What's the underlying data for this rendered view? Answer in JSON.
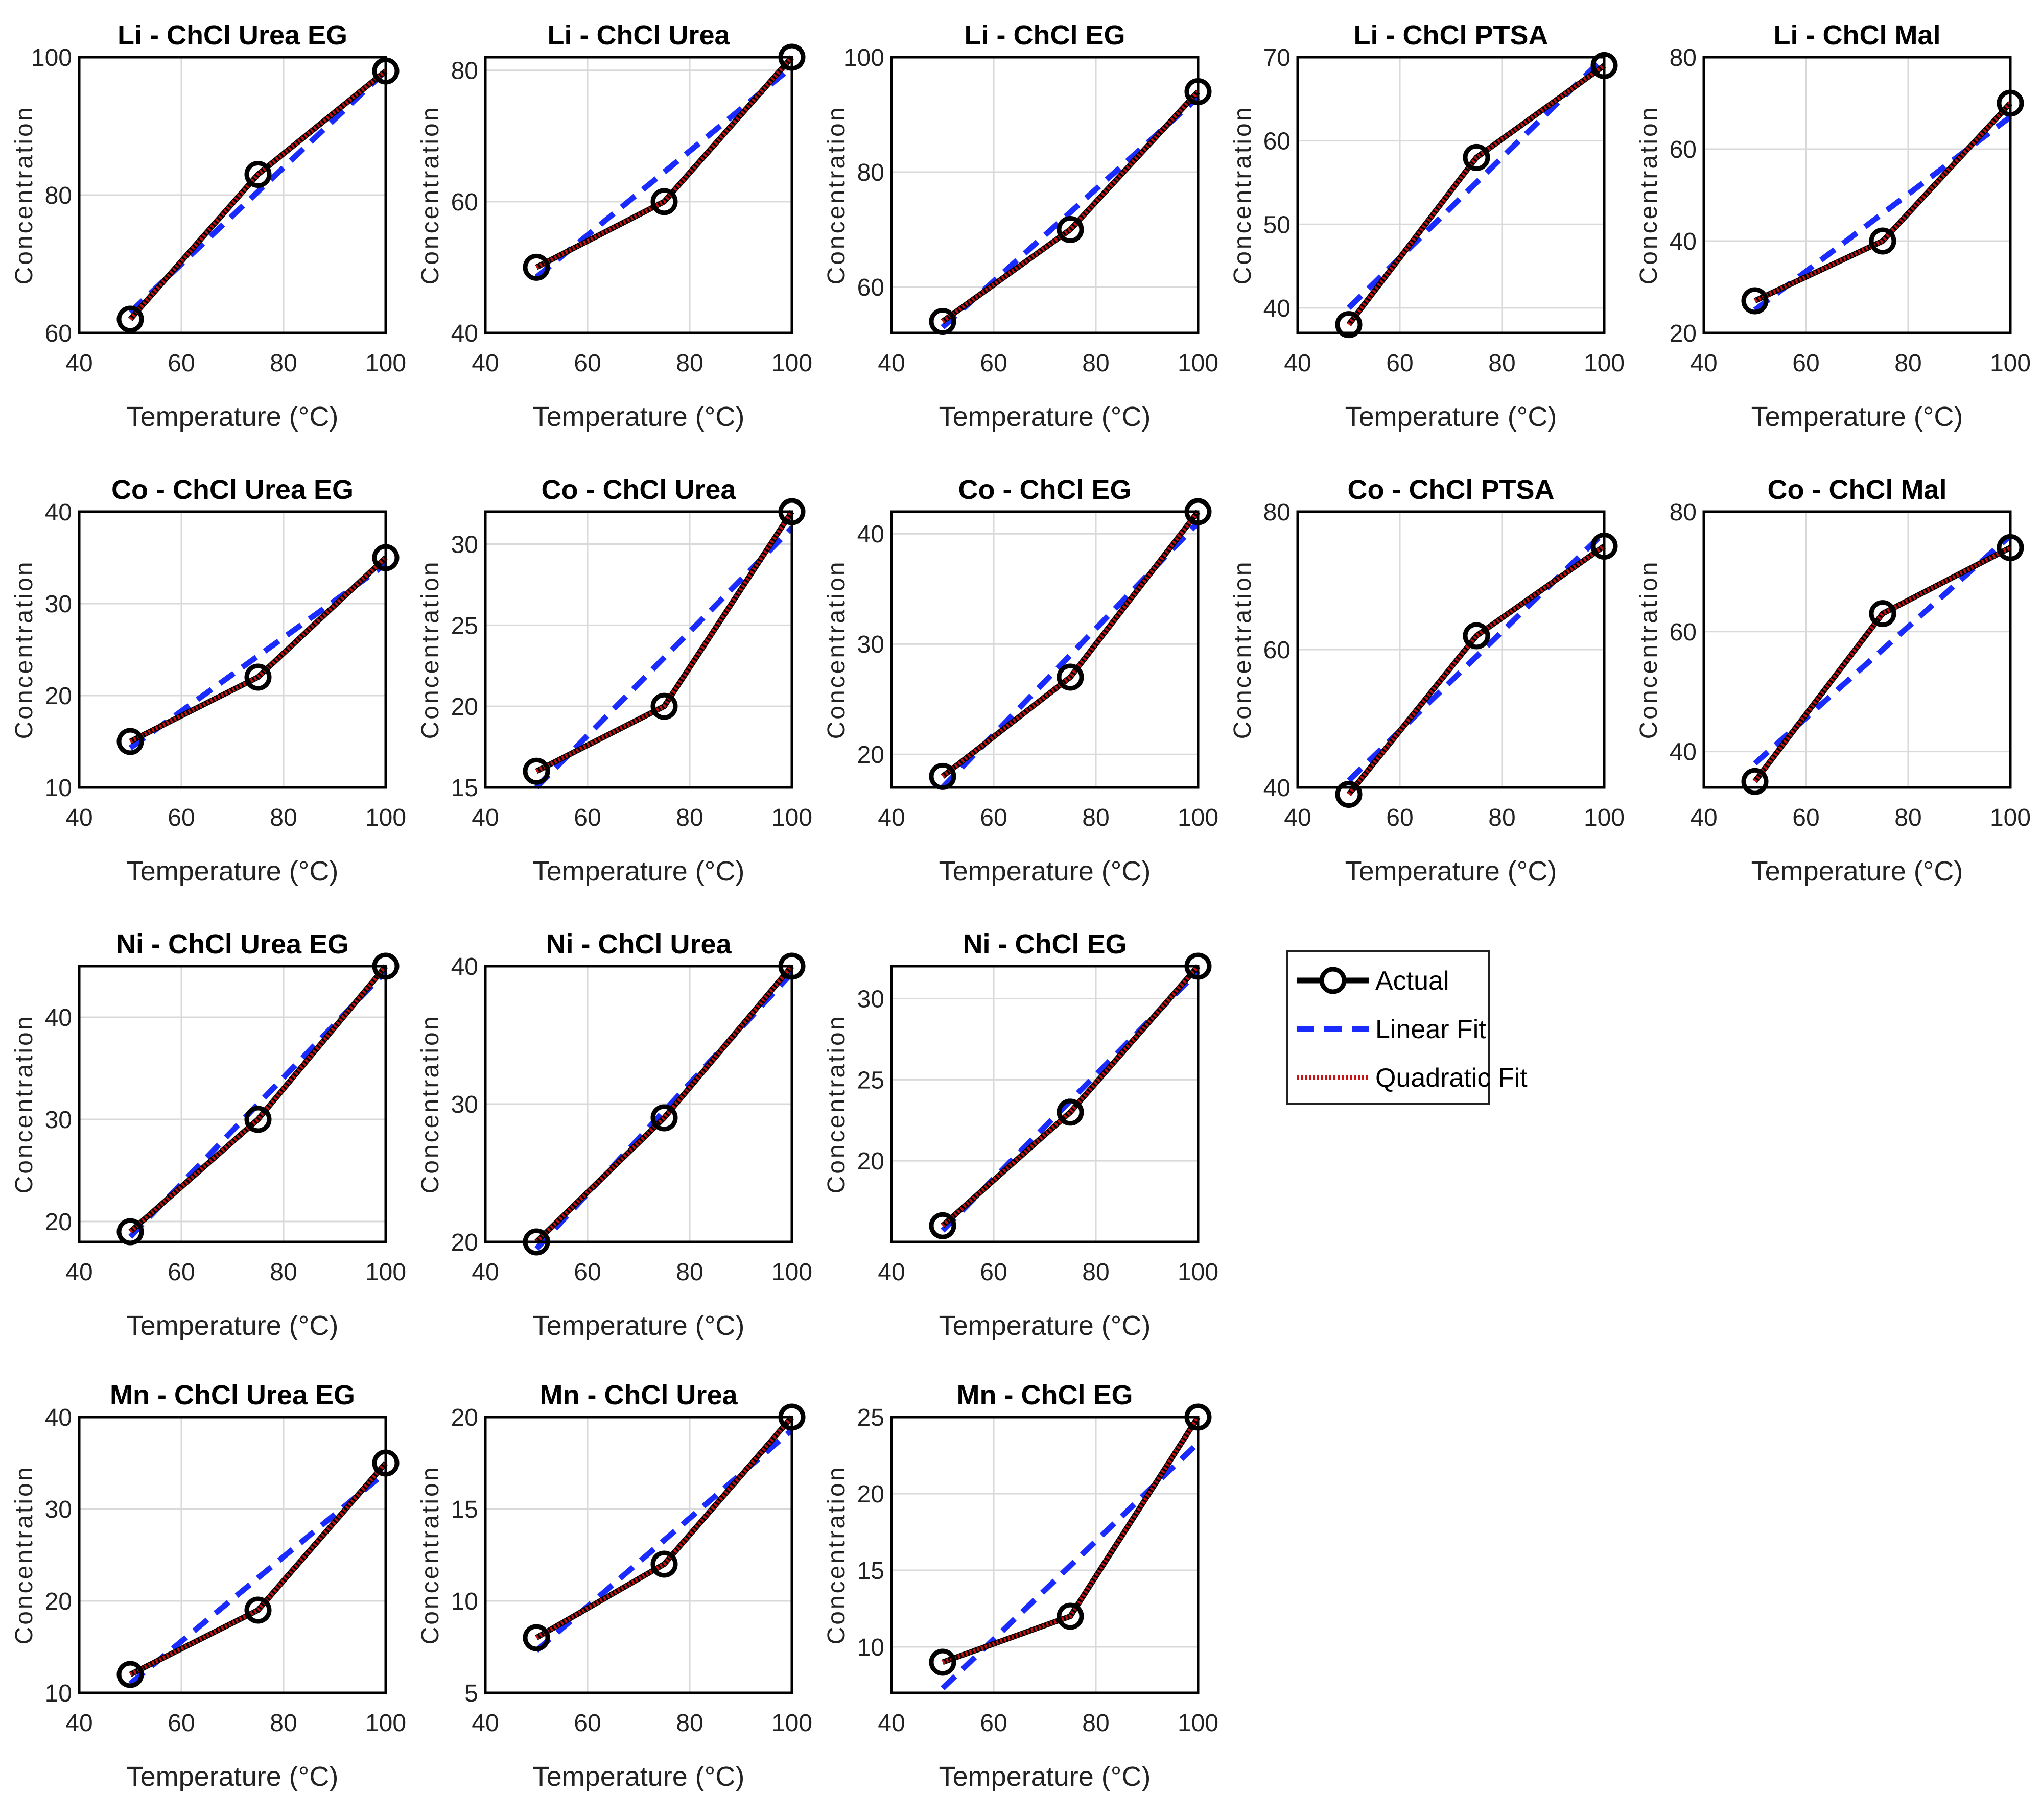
{
  "chart_data": {
    "type": "line",
    "legend": {
      "placement": "right-of-third-row",
      "entries": [
        {
          "name": "Actual",
          "style": "solid-circles",
          "color": "#000000"
        },
        {
          "name": "Linear Fit",
          "style": "dashed",
          "color": "#1a2bff"
        },
        {
          "name": "Quadratic Fit",
          "style": "dotted",
          "color": "#d01010"
        }
      ]
    },
    "colors": {
      "actual": "#000000",
      "linear": "#1a2bff",
      "quadratic": "#d01010",
      "grid": "#d9d9d9"
    },
    "panels": [
      {
        "title": "Li - ChCl Urea EG",
        "xlabel": "Temperature (°C)",
        "ylabel": "Concentration",
        "x": [
          50,
          75,
          100
        ],
        "actual": [
          62,
          83,
          98
        ],
        "linear": [
          63,
          80.5,
          98
        ],
        "xlim": [
          40,
          100
        ],
        "ylim": [
          60,
          100
        ],
        "xticks": [
          40,
          60,
          80,
          100
        ],
        "yticks": [
          60,
          80,
          100
        ]
      },
      {
        "title": "Li - ChCl Urea",
        "xlabel": "Temperature (°C)",
        "ylabel": "Concentration",
        "x": [
          50,
          75,
          100
        ],
        "actual": [
          50,
          60,
          82
        ],
        "linear": [
          48.5,
          64.5,
          80.5
        ],
        "xlim": [
          40,
          100
        ],
        "ylim": [
          40,
          82
        ],
        "xticks": [
          40,
          60,
          80,
          100
        ],
        "yticks": [
          40,
          60,
          80
        ]
      },
      {
        "title": "Li - ChCl EG",
        "xlabel": "Temperature (°C)",
        "ylabel": "Concentration",
        "x": [
          50,
          75,
          100
        ],
        "actual": [
          54,
          70,
          94
        ],
        "linear": [
          53,
          73,
          93
        ],
        "xlim": [
          40,
          100
        ],
        "ylim": [
          52,
          100
        ],
        "xticks": [
          40,
          60,
          80,
          100
        ],
        "yticks": [
          60,
          80,
          100
        ]
      },
      {
        "title": "Li - ChCl PTSA",
        "xlabel": "Temperature (°C)",
        "ylabel": "Concentration",
        "x": [
          50,
          75,
          100
        ],
        "actual": [
          38,
          58,
          69
        ],
        "linear": [
          40,
          55,
          70
        ],
        "xlim": [
          40,
          100
        ],
        "ylim": [
          37,
          70
        ],
        "xticks": [
          40,
          60,
          80,
          100
        ],
        "yticks": [
          40,
          50,
          60,
          70
        ]
      },
      {
        "title": "Li - ChCl Mal",
        "xlabel": "Temperature (°C)",
        "ylabel": "Concentration",
        "x": [
          50,
          75,
          100
        ],
        "actual": [
          27,
          40,
          70
        ],
        "linear": [
          25,
          46,
          67
        ],
        "xlim": [
          40,
          100
        ],
        "ylim": [
          20,
          80
        ],
        "xticks": [
          40,
          60,
          80,
          100
        ],
        "yticks": [
          20,
          40,
          60,
          80
        ]
      },
      {
        "title": "Co - ChCl Urea EG",
        "xlabel": "Temperature (°C)",
        "ylabel": "Concentration",
        "x": [
          50,
          75,
          100
        ],
        "actual": [
          15,
          22,
          35
        ],
        "linear": [
          14.3,
          24.3,
          34.3
        ],
        "xlim": [
          40,
          100
        ],
        "ylim": [
          10,
          40
        ],
        "xticks": [
          40,
          60,
          80,
          100
        ],
        "yticks": [
          10,
          20,
          30,
          40
        ]
      },
      {
        "title": "Co - ChCl Urea",
        "xlabel": "Temperature (°C)",
        "ylabel": "Concentration",
        "x": [
          50,
          75,
          100
        ],
        "actual": [
          16,
          20,
          32
        ],
        "linear": [
          15,
          23,
          31
        ],
        "xlim": [
          40,
          100
        ],
        "ylim": [
          15,
          32
        ],
        "xticks": [
          40,
          60,
          80,
          100
        ],
        "yticks": [
          15,
          20,
          25,
          30
        ]
      },
      {
        "title": "Co - ChCl EG",
        "xlabel": "Temperature (°C)",
        "ylabel": "Concentration",
        "x": [
          50,
          75,
          100
        ],
        "actual": [
          18,
          27,
          42
        ],
        "linear": [
          17,
          29,
          41
        ],
        "xlim": [
          40,
          100
        ],
        "ylim": [
          17,
          42
        ],
        "xticks": [
          40,
          60,
          80,
          100
        ],
        "yticks": [
          20,
          30,
          40
        ]
      },
      {
        "title": "Co - ChCl PTSA",
        "xlabel": "Temperature (°C)",
        "ylabel": "Concentration",
        "x": [
          50,
          75,
          100
        ],
        "actual": [
          39,
          62,
          75
        ],
        "linear": [
          41,
          59,
          77
        ],
        "xlim": [
          40,
          100
        ],
        "ylim": [
          40,
          80
        ],
        "xticks": [
          40,
          60,
          80,
          100
        ],
        "yticks": [
          40,
          60,
          80
        ]
      },
      {
        "title": "Co - ChCl Mal",
        "xlabel": "Temperature (°C)",
        "ylabel": "Concentration",
        "x": [
          50,
          75,
          100
        ],
        "actual": [
          35,
          63,
          74
        ],
        "linear": [
          38,
          57,
          76
        ],
        "xlim": [
          40,
          100
        ],
        "ylim": [
          34,
          80
        ],
        "xticks": [
          40,
          60,
          80,
          100
        ],
        "yticks": [
          40,
          60,
          80
        ]
      },
      {
        "title": "Ni - ChCl Urea EG",
        "xlabel": "Temperature (°C)",
        "ylabel": "Concentration",
        "x": [
          50,
          75,
          100
        ],
        "actual": [
          19,
          30,
          45
        ],
        "linear": [
          18.5,
          31.5,
          44.5
        ],
        "xlim": [
          40,
          100
        ],
        "ylim": [
          18,
          45
        ],
        "xticks": [
          40,
          60,
          80,
          100
        ],
        "yticks": [
          20,
          30,
          40
        ]
      },
      {
        "title": "Ni - ChCl Urea",
        "xlabel": "Temperature (°C)",
        "ylabel": "Concentration",
        "x": [
          50,
          75,
          100
        ],
        "actual": [
          20,
          29,
          40
        ],
        "linear": [
          19.5,
          29.5,
          39.5
        ],
        "xlim": [
          40,
          100
        ],
        "ylim": [
          20,
          40
        ],
        "xticks": [
          40,
          60,
          80,
          100
        ],
        "yticks": [
          20,
          30,
          40
        ]
      },
      {
        "title": "Ni - ChCl EG",
        "xlabel": "Temperature (°C)",
        "ylabel": "Concentration",
        "x": [
          50,
          75,
          100
        ],
        "actual": [
          16,
          23,
          32
        ],
        "linear": [
          15.7,
          23.7,
          31.7
        ],
        "xlim": [
          40,
          100
        ],
        "ylim": [
          15,
          32
        ],
        "xticks": [
          40,
          60,
          80,
          100
        ],
        "yticks": [
          20,
          25,
          30
        ]
      },
      {
        "title": "Mn - ChCl Urea EG",
        "xlabel": "Temperature (°C)",
        "ylabel": "Concentration",
        "x": [
          50,
          75,
          100
        ],
        "actual": [
          12,
          19,
          35
        ],
        "linear": [
          11,
          22.5,
          34
        ],
        "xlim": [
          40,
          100
        ],
        "ylim": [
          10,
          40
        ],
        "xticks": [
          40,
          60,
          80,
          100
        ],
        "yticks": [
          10,
          20,
          30,
          40
        ]
      },
      {
        "title": "Mn - ChCl Urea",
        "xlabel": "Temperature (°C)",
        "ylabel": "Concentration",
        "x": [
          50,
          75,
          100
        ],
        "actual": [
          8,
          12,
          20
        ],
        "linear": [
          7.3,
          13.3,
          19.3
        ],
        "xlim": [
          40,
          100
        ],
        "ylim": [
          5,
          20
        ],
        "xticks": [
          40,
          60,
          80,
          100
        ],
        "yticks": [
          5,
          10,
          15,
          20
        ]
      },
      {
        "title": "Mn - ChCl EG",
        "xlabel": "Temperature (°C)",
        "ylabel": "Concentration",
        "x": [
          50,
          75,
          100
        ],
        "actual": [
          9,
          12,
          25
        ],
        "linear": [
          7.3,
          15.3,
          23.3
        ],
        "xlim": [
          40,
          100
        ],
        "ylim": [
          7,
          25
        ],
        "xticks": [
          40,
          60,
          80,
          100
        ],
        "yticks": [
          10,
          15,
          20,
          25
        ]
      }
    ]
  }
}
